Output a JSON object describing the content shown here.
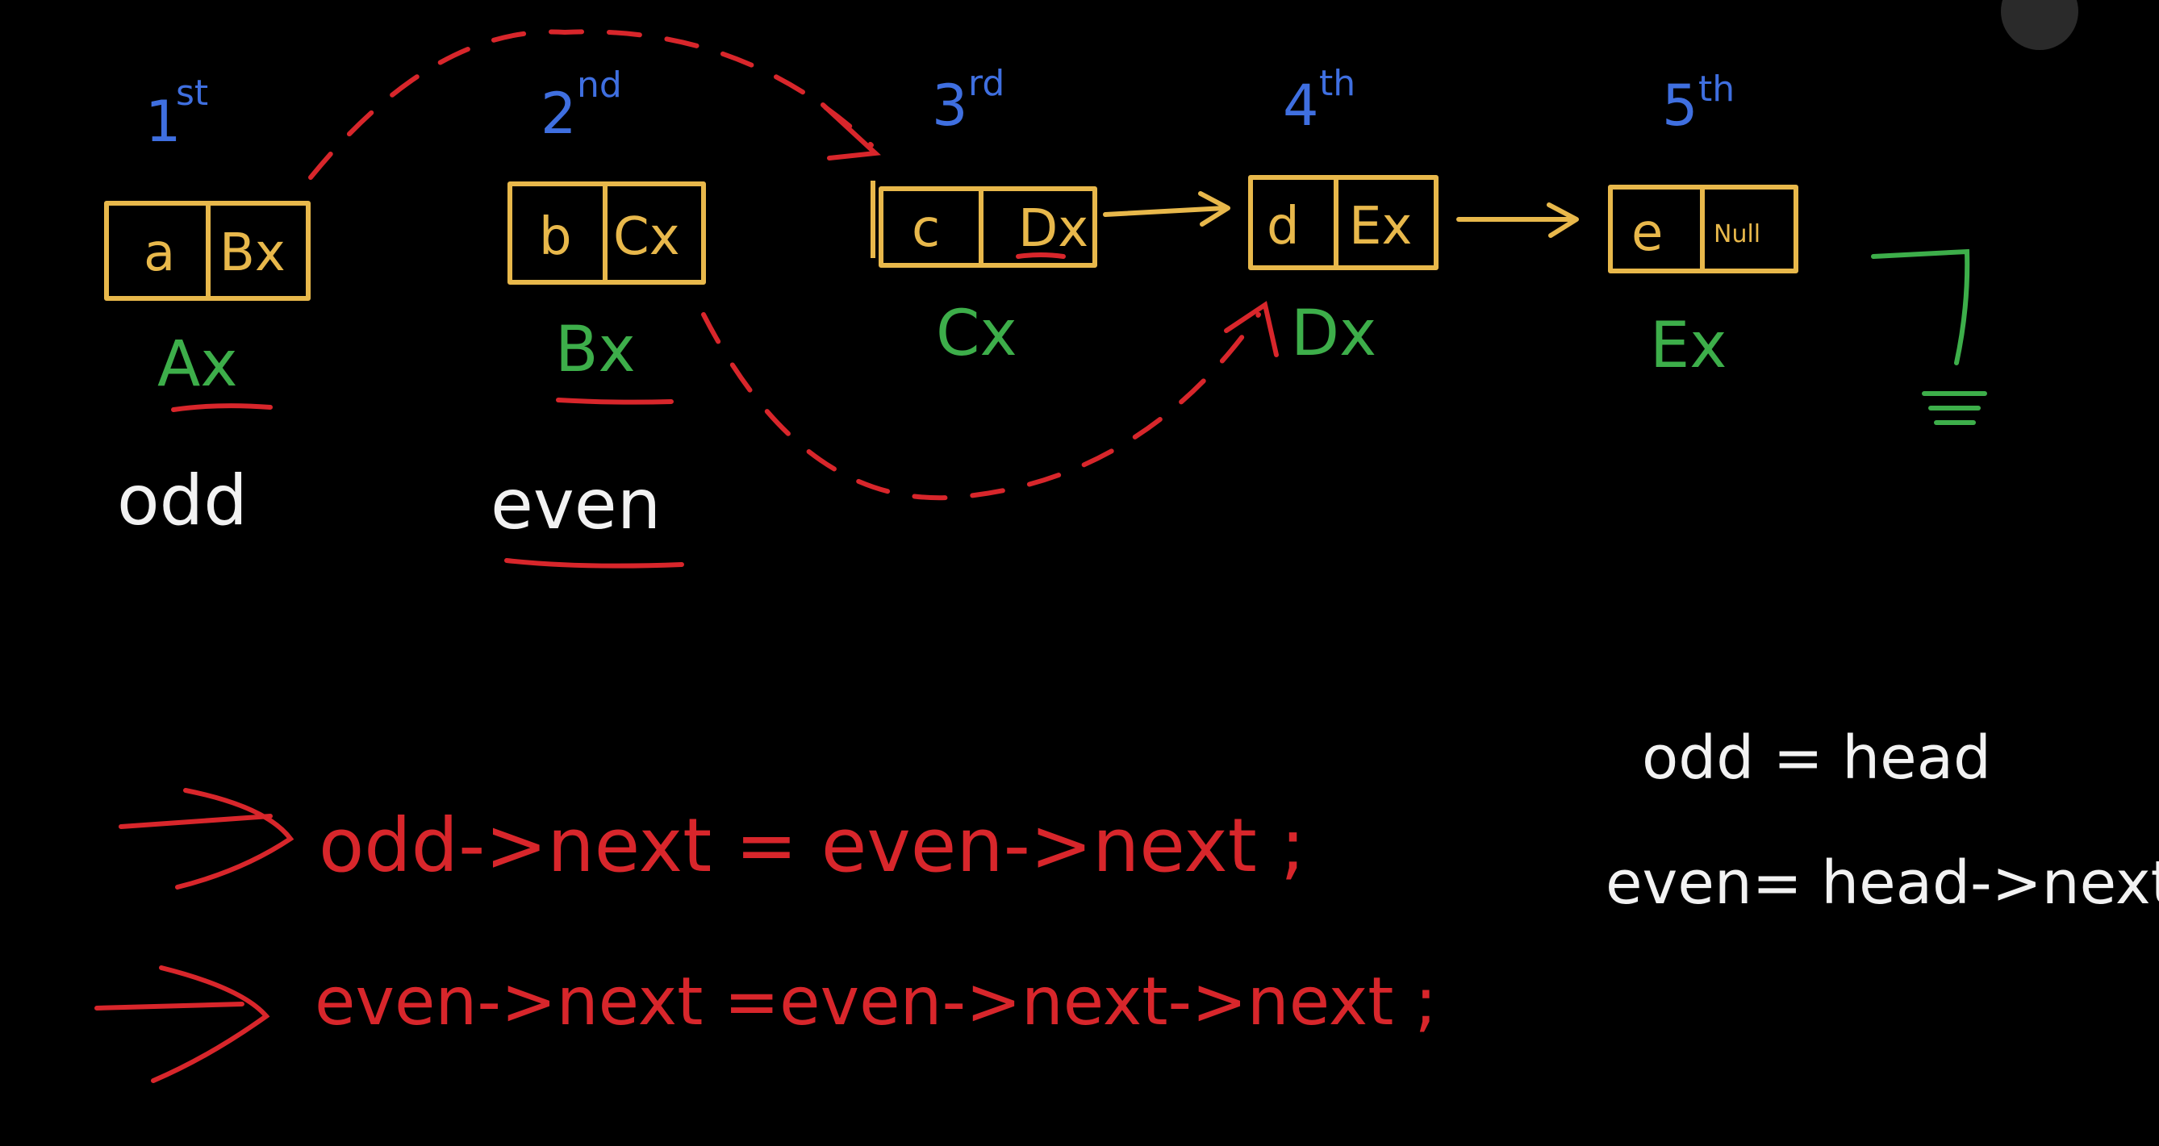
{
  "diagram": {
    "nodes": [
      {
        "ordinal": "1",
        "ordinal_sup": "st",
        "value": "a",
        "next": "Bx",
        "address": "Ax"
      },
      {
        "ordinal": "2",
        "ordinal_sup": "nd",
        "value": "b",
        "next": "Cx",
        "address": "Bx"
      },
      {
        "ordinal": "3",
        "ordinal_sup": "rd",
        "value": "c",
        "next": "Dx",
        "address": "Cx"
      },
      {
        "ordinal": "4",
        "ordinal_sup": "th",
        "value": "d",
        "next": "Ex",
        "address": "Dx"
      },
      {
        "ordinal": "5",
        "ordinal_sup": "th",
        "value": "e",
        "next": "Null",
        "address": "Ex"
      }
    ],
    "labels": {
      "odd": "odd",
      "even": "even"
    },
    "init": {
      "line1": "odd = head",
      "line2": "even= head->next"
    },
    "steps": {
      "line1": "odd->next  = even->next ;",
      "line2": "even->next    =even->next->next ;"
    }
  },
  "colors": {
    "background": "#000000",
    "node_border": "#E8B84B",
    "ordinal": "#3F6FE0",
    "address": "#3DAE4A",
    "annotation": "#D8262B",
    "chalk": "#F2F2F2"
  }
}
